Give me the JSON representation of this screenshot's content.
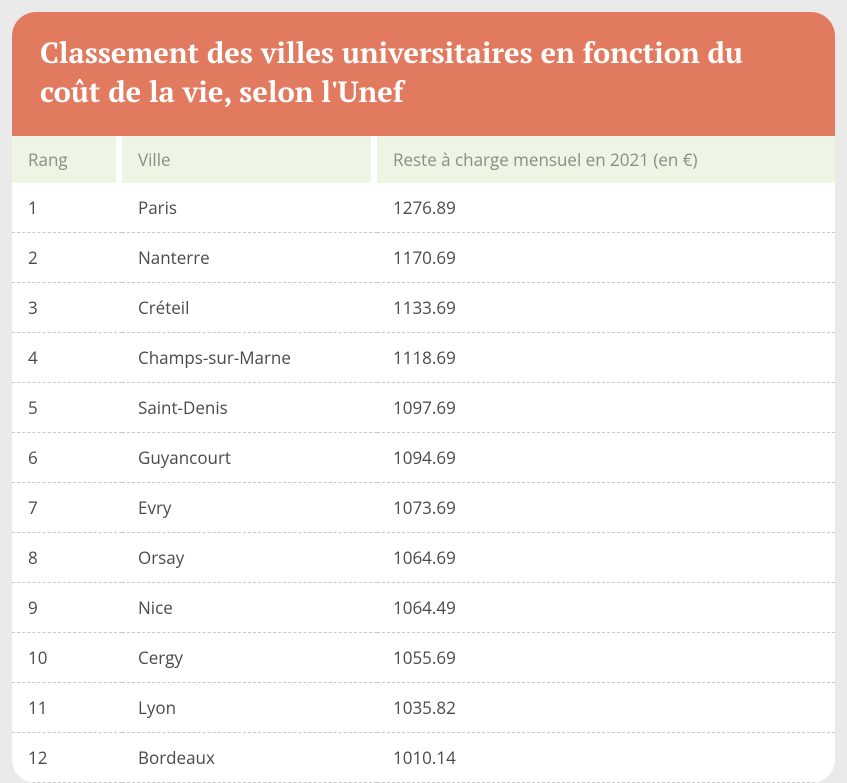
{
  "title": "Classement des villes universitaires en fonction du coût de la vie, selon l'Unef",
  "columns": {
    "rang": "Rang",
    "ville": "Ville",
    "cost": "Reste à charge mensuel en 2021 (en €)"
  },
  "rows": [
    {
      "rang": "1",
      "ville": "Paris",
      "cost": "1276.89"
    },
    {
      "rang": "2",
      "ville": "Nanterre",
      "cost": "1170.69"
    },
    {
      "rang": "3",
      "ville": "Créteil",
      "cost": "1133.69"
    },
    {
      "rang": "4",
      "ville": "Champs-sur-Marne",
      "cost": "1118.69"
    },
    {
      "rang": "5",
      "ville": "Saint-Denis",
      "cost": "1097.69"
    },
    {
      "rang": "6",
      "ville": "Guyancourt",
      "cost": "1094.69"
    },
    {
      "rang": "7",
      "ville": "Evry",
      "cost": "1073.69"
    },
    {
      "rang": "8",
      "ville": "Orsay",
      "cost": "1064.69"
    },
    {
      "rang": "9",
      "ville": "Nice",
      "cost": "1064.49"
    },
    {
      "rang": "10",
      "ville": "Cergy",
      "cost": "1055.69"
    },
    {
      "rang": "11",
      "ville": "Lyon",
      "cost": "1035.82"
    },
    {
      "rang": "12",
      "ville": "Bordeaux",
      "cost": "1010.14"
    }
  ],
  "style": {
    "title_bg": "#e27a60",
    "title_color": "#ffffff",
    "title_fontsize": 29,
    "header_bg": "#edf5e4",
    "header_color": "#8a8f85",
    "cell_color": "#4a4a4a",
    "row_border": "#c8c8c8",
    "page_bg": "#eaeaea",
    "card_radius": 24,
    "col_widths": {
      "rang": 110,
      "ville": 255
    },
    "cell_fontsize": 17
  }
}
